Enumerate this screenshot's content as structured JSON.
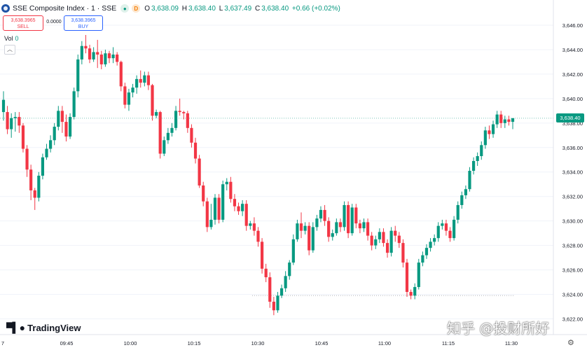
{
  "header": {
    "title": "SSE Composite Index · 1 · SSE",
    "status_g": "",
    "status_d": "D",
    "ohlc": [
      {
        "k": "O",
        "v": "3,638.09"
      },
      {
        "k": "H",
        "v": "3,638.40"
      },
      {
        "k": "L",
        "v": "3,637.49"
      },
      {
        "k": "C",
        "v": "3,638.40"
      }
    ],
    "change": "+0.66 (+0.02%)"
  },
  "trade": {
    "sell_price": "3,638.3965",
    "sell_label": "SELL",
    "spread": "0.0000",
    "buy_price": "3,638.3965",
    "buy_label": "BUY"
  },
  "volume": {
    "label": "Vol",
    "value": "0"
  },
  "branding": {
    "logo": "TradingView",
    "watermark": "知乎 @投财所好"
  },
  "last_price": "3,638.40",
  "colors": {
    "up": "#089981",
    "down": "#f23645",
    "grid": "#f0f3fa",
    "axis_text": "#131722"
  },
  "chart_data": {
    "type": "candlestick",
    "y_ticks": [
      "3,646.00",
      "3,644.00",
      "3,642.00",
      "3,640.00",
      "3,638.00",
      "3,636.00",
      "3,634.00",
      "3,632.00",
      "3,630.00",
      "3,628.00",
      "3,626.00",
      "3,624.00",
      "3,622.00"
    ],
    "x_ticks": [
      "7",
      "09:45",
      "10:00",
      "10:15",
      "10:30",
      "10:45",
      "11:00",
      "11:15",
      "11:30"
    ],
    "ylim": [
      3621.4,
      3647.2
    ],
    "reference_lines": [
      3638.4,
      3623.9
    ],
    "candles": [
      [
        3638.9,
        3639.9,
        3638.2,
        3640.6
      ],
      [
        3638.9,
        3637.5,
        3637.1,
        3639.4
      ],
      [
        3637.5,
        3638.4,
        3636.8,
        3638.8
      ],
      [
        3638.4,
        3638.5,
        3637.3,
        3638.9
      ],
      [
        3638.5,
        3637.8,
        3637.2,
        3638.9
      ],
      [
        3637.8,
        3635.9,
        3635.6,
        3638.0
      ],
      [
        3635.9,
        3634.2,
        3633.6,
        3636.2
      ],
      [
        3634.2,
        3632.5,
        3631.7,
        3634.6
      ],
      [
        3632.5,
        3631.9,
        3630.9,
        3632.7
      ],
      [
        3631.9,
        3633.7,
        3631.6,
        3634.0
      ],
      [
        3633.7,
        3635.2,
        3633.4,
        3635.5
      ],
      [
        3635.2,
        3635.9,
        3635.0,
        3636.3
      ],
      [
        3635.9,
        3636.6,
        3635.6,
        3637.0
      ],
      [
        3636.6,
        3637.7,
        3636.2,
        3638.0
      ],
      [
        3637.7,
        3639.0,
        3637.4,
        3639.4
      ],
      [
        3639.0,
        3638.1,
        3637.2,
        3639.4
      ],
      [
        3638.1,
        3636.9,
        3636.5,
        3638.7
      ],
      [
        3636.9,
        3638.5,
        3636.7,
        3638.8
      ],
      [
        3638.5,
        3640.6,
        3638.3,
        3640.9
      ],
      [
        3640.6,
        3643.2,
        3640.1,
        3643.6
      ],
      [
        3643.2,
        3644.3,
        3642.8,
        3644.7
      ],
      [
        3644.3,
        3644.1,
        3643.7,
        3645.2
      ],
      [
        3644.1,
        3643.2,
        3642.9,
        3644.4
      ],
      [
        3643.2,
        3643.8,
        3643.0,
        3644.2
      ],
      [
        3643.8,
        3643.6,
        3642.5,
        3644.8
      ],
      [
        3643.6,
        3642.8,
        3642.4,
        3643.9
      ],
      [
        3642.8,
        3643.7,
        3642.6,
        3644.0
      ],
      [
        3643.7,
        3643.3,
        3642.9,
        3643.9
      ],
      [
        3643.3,
        3643.6,
        3642.9,
        3644.2
      ],
      [
        3643.6,
        3643.0,
        3642.7,
        3643.8
      ],
      [
        3643.0,
        3641.0,
        3640.6,
        3643.1
      ],
      [
        3641.0,
        3639.5,
        3639.2,
        3641.3
      ],
      [
        3639.5,
        3640.5,
        3639.0,
        3640.8
      ],
      [
        3640.5,
        3640.9,
        3640.1,
        3641.2
      ],
      [
        3640.9,
        3641.6,
        3640.4,
        3641.9
      ],
      [
        3641.6,
        3641.3,
        3640.9,
        3642.3
      ],
      [
        3641.3,
        3641.9,
        3641.0,
        3642.2
      ],
      [
        3641.9,
        3641.1,
        3640.7,
        3642.2
      ],
      [
        3641.1,
        3638.6,
        3638.2,
        3641.2
      ],
      [
        3638.6,
        3638.9,
        3638.4,
        3639.1
      ],
      [
        3638.9,
        3635.5,
        3635.1,
        3639.0
      ],
      [
        3635.5,
        3636.6,
        3635.3,
        3636.9
      ],
      [
        3636.6,
        3637.2,
        3636.3,
        3637.6
      ],
      [
        3637.2,
        3637.6,
        3636.9,
        3638.0
      ],
      [
        3637.6,
        3639.0,
        3637.4,
        3639.4
      ],
      [
        3639.0,
        3638.9,
        3638.6,
        3640.0
      ],
      [
        3638.9,
        3638.8,
        3638.3,
        3639.0
      ],
      [
        3638.8,
        3637.6,
        3637.2,
        3639.0
      ],
      [
        3637.6,
        3636.4,
        3636.0,
        3637.9
      ],
      [
        3636.4,
        3635.1,
        3634.7,
        3636.8
      ],
      [
        3635.1,
        3632.9,
        3632.7,
        3635.4
      ],
      [
        3632.9,
        3631.6,
        3631.2,
        3633.2
      ],
      [
        3631.6,
        3629.5,
        3629.1,
        3631.9
      ],
      [
        3629.5,
        3630.1,
        3629.3,
        3631.4
      ],
      [
        3630.1,
        3631.9,
        3629.7,
        3632.2
      ],
      [
        3631.9,
        3630.1,
        3629.8,
        3632.2
      ],
      [
        3630.1,
        3633.0,
        3629.9,
        3633.3
      ],
      [
        3633.0,
        3633.2,
        3632.5,
        3633.5
      ],
      [
        3633.2,
        3631.8,
        3631.5,
        3633.6
      ],
      [
        3631.8,
        3631.2,
        3630.8,
        3632.2
      ],
      [
        3631.2,
        3630.8,
        3630.5,
        3631.5
      ],
      [
        3630.8,
        3631.4,
        3630.4,
        3631.7
      ],
      [
        3631.4,
        3629.6,
        3629.2,
        3631.7
      ],
      [
        3629.6,
        3629.8,
        3629.3,
        3630.0
      ],
      [
        3629.8,
        3629.2,
        3628.8,
        3630.3
      ],
      [
        3629.2,
        3628.3,
        3627.9,
        3629.5
      ],
      [
        3628.3,
        3626.1,
        3625.7,
        3628.6
      ],
      [
        3626.1,
        3625.4,
        3625.0,
        3626.5
      ],
      [
        3625.4,
        3623.4,
        3622.9,
        3625.8
      ],
      [
        3623.4,
        3622.7,
        3622.3,
        3623.8
      ],
      [
        3622.7,
        3623.9,
        3622.5,
        3624.2
      ],
      [
        3623.9,
        3624.5,
        3623.7,
        3624.8
      ],
      [
        3624.5,
        3625.5,
        3624.2,
        3625.9
      ],
      [
        3625.5,
        3626.6,
        3625.2,
        3626.8
      ],
      [
        3626.6,
        3628.5,
        3626.4,
        3628.9
      ],
      [
        3628.5,
        3629.8,
        3628.3,
        3630.1
      ],
      [
        3629.8,
        3629.2,
        3628.6,
        3630.7
      ],
      [
        3629.2,
        3629.6,
        3628.9,
        3629.9
      ],
      [
        3629.6,
        3627.6,
        3627.2,
        3629.9
      ],
      [
        3627.6,
        3629.5,
        3627.4,
        3629.9
      ],
      [
        3629.5,
        3630.2,
        3629.2,
        3630.5
      ],
      [
        3630.2,
        3630.9,
        3629.9,
        3631.2
      ],
      [
        3630.9,
        3630.0,
        3629.6,
        3631.3
      ],
      [
        3630.0,
        3628.7,
        3628.3,
        3630.3
      ],
      [
        3628.7,
        3629.0,
        3628.4,
        3629.3
      ],
      [
        3629.0,
        3629.9,
        3628.8,
        3630.2
      ],
      [
        3629.9,
        3629.5,
        3629.1,
        3630.2
      ],
      [
        3629.5,
        3631.3,
        3629.2,
        3631.6
      ],
      [
        3631.3,
        3629.0,
        3628.6,
        3631.6
      ],
      [
        3629.0,
        3631.1,
        3628.8,
        3631.4
      ],
      [
        3631.1,
        3629.8,
        3629.4,
        3631.4
      ],
      [
        3629.8,
        3629.4,
        3629.0,
        3630.1
      ],
      [
        3629.4,
        3629.9,
        3629.1,
        3630.2
      ],
      [
        3629.9,
        3628.8,
        3628.4,
        3630.2
      ],
      [
        3628.8,
        3628.0,
        3627.6,
        3629.1
      ],
      [
        3628.0,
        3628.5,
        3627.7,
        3628.8
      ],
      [
        3628.5,
        3629.1,
        3628.2,
        3629.4
      ],
      [
        3629.1,
        3628.2,
        3627.9,
        3629.4
      ],
      [
        3628.2,
        3627.4,
        3627.0,
        3628.5
      ],
      [
        3627.4,
        3629.2,
        3627.1,
        3629.5
      ],
      [
        3629.2,
        3628.8,
        3628.3,
        3629.6
      ],
      [
        3628.8,
        3628.2,
        3627.8,
        3629.1
      ],
      [
        3628.2,
        3626.6,
        3626.2,
        3628.5
      ],
      [
        3626.6,
        3624.2,
        3623.8,
        3626.9
      ],
      [
        3624.2,
        3623.9,
        3623.6,
        3624.4
      ],
      [
        3623.9,
        3624.6,
        3623.6,
        3624.9
      ],
      [
        3624.6,
        3626.6,
        3624.4,
        3626.9
      ],
      [
        3626.6,
        3627.2,
        3626.3,
        3627.5
      ],
      [
        3627.2,
        3627.8,
        3626.9,
        3628.1
      ],
      [
        3627.8,
        3628.3,
        3627.5,
        3628.6
      ],
      [
        3628.3,
        3628.6,
        3628.0,
        3628.9
      ],
      [
        3628.6,
        3629.6,
        3628.3,
        3629.9
      ],
      [
        3629.6,
        3629.8,
        3629.3,
        3630.1
      ],
      [
        3629.8,
        3629.2,
        3628.8,
        3630.1
      ],
      [
        3629.2,
        3628.6,
        3628.3,
        3629.5
      ],
      [
        3628.6,
        3630.1,
        3628.4,
        3630.4
      ],
      [
        3630.1,
        3631.3,
        3629.8,
        3631.6
      ],
      [
        3631.3,
        3632.1,
        3631.0,
        3632.4
      ],
      [
        3632.1,
        3632.6,
        3631.8,
        3632.9
      ],
      [
        3632.6,
        3634.1,
        3632.4,
        3634.4
      ],
      [
        3634.1,
        3634.9,
        3633.8,
        3635.2
      ],
      [
        3634.9,
        3635.3,
        3634.5,
        3635.6
      ],
      [
        3635.3,
        3636.2,
        3635.0,
        3636.5
      ],
      [
        3636.2,
        3637.4,
        3635.9,
        3637.7
      ],
      [
        3637.4,
        3637.1,
        3636.7,
        3637.8
      ],
      [
        3637.1,
        3637.9,
        3636.8,
        3638.2
      ],
      [
        3637.9,
        3638.7,
        3637.6,
        3639.0
      ],
      [
        3638.7,
        3638.0,
        3637.6,
        3639.0
      ],
      [
        3638.0,
        3638.3,
        3637.6,
        3638.6
      ],
      [
        3638.3,
        3638.1,
        3637.8,
        3638.6
      ],
      [
        3638.1,
        3638.4,
        3637.5,
        3638.4
      ]
    ]
  }
}
